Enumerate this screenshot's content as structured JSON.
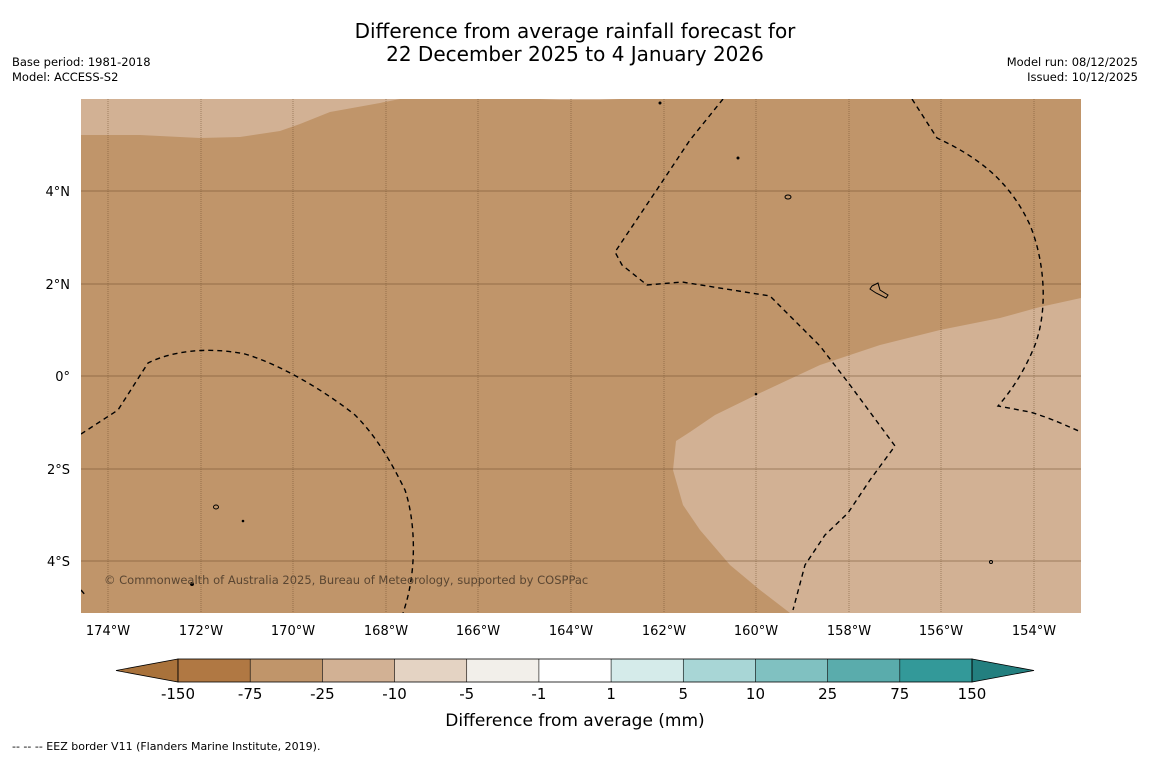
{
  "title": {
    "line1": "Difference from average rainfall forecast for",
    "line2": "22 December 2025 to 4 January 2026"
  },
  "meta_left": {
    "base_period": "Base period: 1981-2018",
    "model": "Model: ACCESS-S2"
  },
  "meta_right": {
    "model_run": "Model run: 08/12/2025",
    "issued": "Issued: 10/12/2025"
  },
  "map": {
    "lat_labels": [
      "4°N",
      "2°N",
      "0°",
      "2°S",
      "4°S"
    ],
    "lon_labels": [
      "174°W",
      "172°W",
      "170°W",
      "168°W",
      "166°W",
      "164°W",
      "162°W",
      "160°W",
      "158°W",
      "156°W",
      "154°W"
    ],
    "copyright": "© Commonwealth of Australia 2025, Bureau of Meteorology, supported by COSPPac",
    "base_color": "#c0956a",
    "light_color": "#d2b194"
  },
  "colorbar": {
    "label": "Difference from average (mm)",
    "tick_labels": [
      "-150",
      "-75",
      "-25",
      "-10",
      "-5",
      "-1",
      "1",
      "5",
      "10",
      "25",
      "75",
      "150"
    ],
    "colors": [
      "#a9723b",
      "#b07843",
      "#c0956a",
      "#d2b194",
      "#e4d3c3",
      "#f2efea",
      "#ffffff",
      "#d5ebea",
      "#a8d6d6",
      "#80c1c1",
      "#5aacac",
      "#339999",
      "#237f7f"
    ]
  },
  "footnote": "--  --  -- EEZ border V11 (Flanders Marine Institute, 2019)."
}
